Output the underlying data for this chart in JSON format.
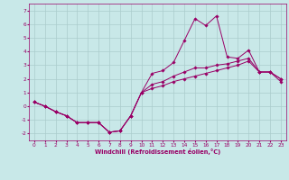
{
  "title": "",
  "xlabel": "Windchill (Refroidissement éolien,°C)",
  "ylabel": "",
  "bg_color": "#c8e8e8",
  "line_color": "#990066",
  "grid_color": "#aacccc",
  "ylim": [
    -2.5,
    7.5
  ],
  "xlim": [
    -0.5,
    23.5
  ],
  "yticks": [
    -2,
    -1,
    0,
    1,
    2,
    3,
    4,
    5,
    6,
    7
  ],
  "xticks": [
    0,
    1,
    2,
    3,
    4,
    5,
    6,
    7,
    8,
    9,
    10,
    11,
    12,
    13,
    14,
    15,
    16,
    17,
    18,
    19,
    20,
    21,
    22,
    23
  ],
  "x": [
    0,
    1,
    2,
    3,
    4,
    5,
    6,
    7,
    8,
    9,
    10,
    11,
    12,
    13,
    14,
    15,
    16,
    17,
    18,
    19,
    20,
    21,
    22,
    23
  ],
  "line1": [
    0.3,
    0.0,
    -0.4,
    -0.7,
    -1.2,
    -1.2,
    -1.2,
    -1.9,
    -1.8,
    -0.7,
    1.0,
    2.4,
    2.6,
    3.2,
    4.8,
    6.4,
    5.9,
    6.6,
    3.6,
    3.5,
    4.1,
    2.5,
    2.5,
    2.0
  ],
  "line2": [
    0.3,
    0.0,
    -0.4,
    -0.7,
    -1.2,
    -1.2,
    -1.2,
    -1.9,
    -1.8,
    -0.7,
    1.0,
    1.6,
    1.8,
    2.2,
    2.5,
    2.8,
    2.8,
    3.0,
    3.1,
    3.3,
    3.5,
    2.5,
    2.5,
    2.0
  ],
  "line3": [
    0.3,
    0.0,
    -0.4,
    -0.7,
    -1.2,
    -1.2,
    -1.2,
    -1.9,
    -1.8,
    -0.7,
    1.0,
    1.3,
    1.5,
    1.8,
    2.0,
    2.2,
    2.4,
    2.6,
    2.8,
    3.0,
    3.3,
    2.5,
    2.5,
    1.8
  ]
}
